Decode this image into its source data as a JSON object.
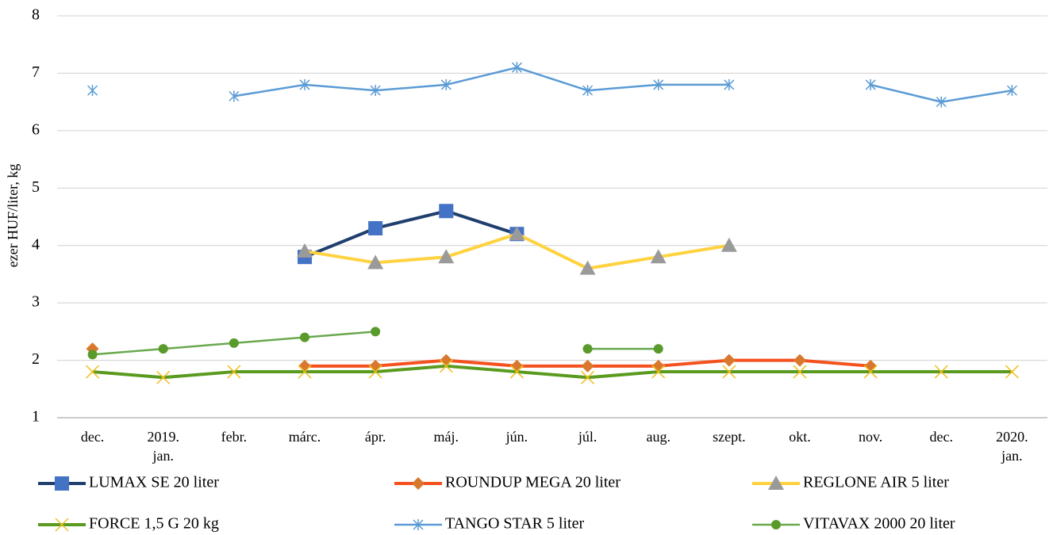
{
  "chart_data": {
    "type": "line",
    "y_label": "ezer HUF/liter, kg",
    "categories": [
      "dec.",
      "2019.\njan.",
      "febr.",
      "márc.",
      "ápr.",
      "máj.",
      "jún.",
      "júl.",
      "aug.",
      "szept.",
      "okt.",
      "nov.",
      "dec.",
      "2020.\njan."
    ],
    "ylim": [
      1,
      8
    ],
    "yticks": [
      1,
      2,
      3,
      4,
      5,
      6,
      7,
      8
    ],
    "grid": true,
    "series": [
      {
        "name": "LUMAX SE 20 liter",
        "color": "#203f6e",
        "marker": "square",
        "marker_color": "#4472c4",
        "values": [
          null,
          null,
          null,
          3.8,
          4.3,
          4.6,
          4.2,
          null,
          null,
          null,
          null,
          null,
          null,
          null
        ]
      },
      {
        "name": "ROUNDUP MEGA 20 liter",
        "color": "#f4511e",
        "marker": "diamond",
        "marker_color": "#d9782d",
        "values": [
          2.2,
          null,
          null,
          1.9,
          1.9,
          2.0,
          1.9,
          1.9,
          1.9,
          2.0,
          2.0,
          1.9,
          null,
          null
        ]
      },
      {
        "name": "REGLONE AIR 5 liter",
        "color": "#ffd23f",
        "marker": "triangle",
        "marker_color": "#9a9a9a",
        "values": [
          null,
          null,
          null,
          3.9,
          3.7,
          3.8,
          4.2,
          3.6,
          3.8,
          4.0,
          null,
          null,
          null,
          null
        ]
      },
      {
        "name": "FORCE 1,5 G 20 kg",
        "color": "#5a9a1e",
        "marker": "x",
        "marker_color": "#f0c020",
        "values": [
          1.8,
          1.7,
          1.8,
          1.8,
          1.8,
          1.9,
          1.8,
          1.7,
          1.8,
          1.8,
          1.8,
          1.8,
          1.8,
          1.8
        ]
      },
      {
        "name": "TANGO STAR 5 liter",
        "color": "#5b9bd5",
        "marker": "star",
        "marker_color": "#5b9bd5",
        "values": [
          6.7,
          null,
          6.6,
          6.8,
          6.7,
          6.8,
          7.1,
          6.7,
          6.8,
          6.8,
          null,
          6.8,
          6.5,
          6.7
        ]
      },
      {
        "name": "VITAVAX 2000 20 liter",
        "color": "#6aa84f",
        "marker": "circle",
        "marker_color": "#5a9a2a",
        "values": [
          2.1,
          2.2,
          2.3,
          2.4,
          2.5,
          null,
          null,
          2.2,
          2.2,
          null,
          null,
          null,
          null,
          null
        ]
      }
    ]
  }
}
